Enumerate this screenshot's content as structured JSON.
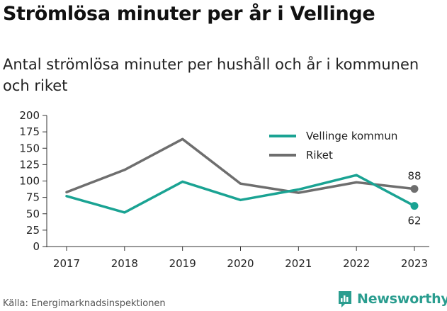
{
  "title": "Strömlösa minuter per år i Vellinge",
  "subtitle": "Antal strömlösa minuter per hushåll och år i kommunen och riket",
  "source": "Källa: Energimarknadsinspektionen",
  "brand": {
    "name": "Newsworthy",
    "icon": "newsworthy-logo-icon",
    "color": "#2a9d8f"
  },
  "chart_data": {
    "type": "line",
    "x": [
      "2017",
      "2018",
      "2019",
      "2020",
      "2021",
      "2022",
      "2023"
    ],
    "ylim": [
      0,
      200
    ],
    "yticks": [
      "0",
      "25",
      "50",
      "75",
      "100",
      "125",
      "150",
      "175",
      "200"
    ],
    "grid": false,
    "legend_position": "top-right",
    "series": [
      {
        "name": "Vellinge kommun",
        "color": "#1aa393",
        "values": [
          77,
          52,
          99,
          71,
          87,
          109,
          62
        ]
      },
      {
        "name": "Riket",
        "color": "#6e6e6e",
        "values": [
          83,
          117,
          164,
          96,
          82,
          98,
          88
        ]
      }
    ],
    "end_labels": [
      {
        "series": "Riket",
        "text": "88"
      },
      {
        "series": "Vellinge kommun",
        "text": "62"
      }
    ]
  }
}
